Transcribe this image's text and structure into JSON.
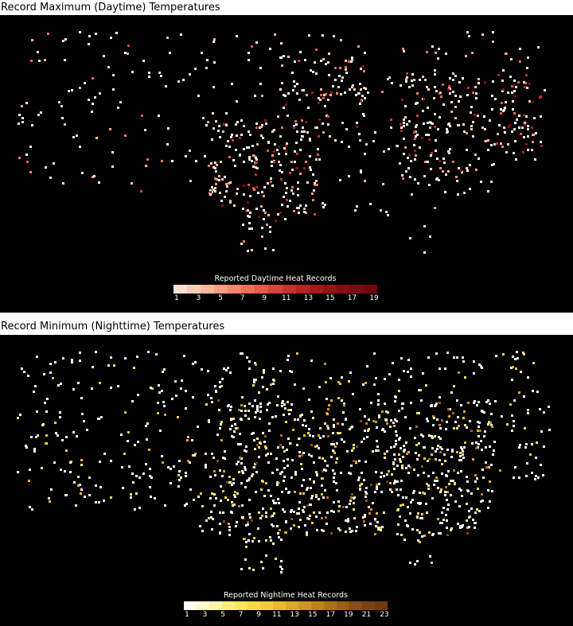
{
  "day_panel": {
    "title": "Record Maximum (Daytime) Temperatures",
    "legend_title": "Reported Daytime Heat Records",
    "ticks": [
      "1",
      "3",
      "5",
      "7",
      "9",
      "11",
      "13",
      "15",
      "17",
      "19"
    ],
    "colors": [
      "#fde0d0",
      "#fccdb7",
      "#fbb79c",
      "#f99e80",
      "#f58669",
      "#ef6f56",
      "#e65a46",
      "#d94338",
      "#c9302c",
      "#b72222",
      "#a4191c",
      "#931417",
      "#840f13",
      "#790c11",
      "#6f0b10"
    ]
  },
  "night_panel": {
    "title": "Record Minimum (Nighttime) Temperatures",
    "legend_title": "Reported Nightime Heat Records",
    "ticks": [
      "1",
      "3",
      "5",
      "7",
      "9",
      "11",
      "13",
      "15",
      "17",
      "19",
      "21",
      "23"
    ],
    "colors": [
      "#fffdf0",
      "#fff9d0",
      "#fff3a8",
      "#ffec80",
      "#ffe55c",
      "#fcd845",
      "#f4c93a",
      "#ebb832",
      "#dea62b",
      "#cf9325",
      "#c0821f",
      "#ae6f1a",
      "#9c5e15",
      "#8a4f12",
      "#7c4310",
      "#6f3a0e"
    ]
  }
}
